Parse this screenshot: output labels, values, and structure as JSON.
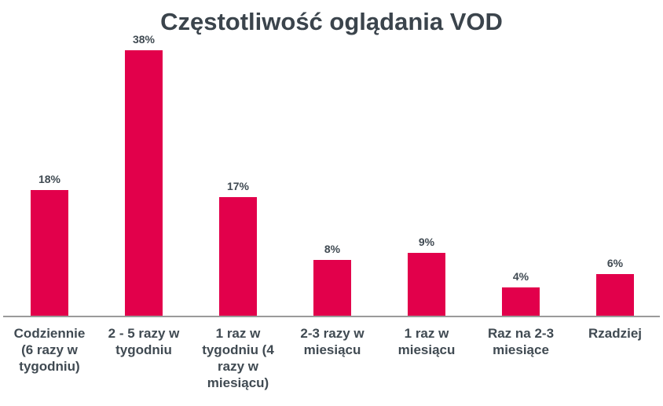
{
  "chart_data": {
    "type": "bar",
    "title": "Częstotliwość oglądania VOD",
    "xlabel": "",
    "ylabel": "",
    "ylim": [
      0,
      40
    ],
    "grid": false,
    "legend": null,
    "bar_color": "#e2004b",
    "categories": [
      "Codziennie (6 razy w tygodniu)",
      "2 - 5 razy w tygodniu",
      "1 raz w tygodniu (4 razy w miesiącu)",
      "2-3 razy w miesiącu",
      "1 raz w miesiącu",
      "Raz na 2-3 miesiące",
      "Rzadziej"
    ],
    "values": [
      18,
      38,
      17,
      8,
      9,
      4,
      6
    ],
    "value_labels": [
      "18%",
      "38%",
      "17%",
      "8%",
      "9%",
      "4%",
      "6%"
    ]
  },
  "category_lines": [
    [
      "Codziennie",
      "(6 razy w",
      "tygodniu)"
    ],
    [
      "2 - 5 razy w",
      "tygodniu"
    ],
    [
      "1 raz w",
      "tygodniu (4",
      "razy w",
      "miesiącu)"
    ],
    [
      "2-3 razy w",
      "miesiącu"
    ],
    [
      "1 raz w",
      "miesiącu"
    ],
    [
      "Raz na 2-3",
      "miesiące"
    ],
    [
      "Rzadziej"
    ]
  ]
}
